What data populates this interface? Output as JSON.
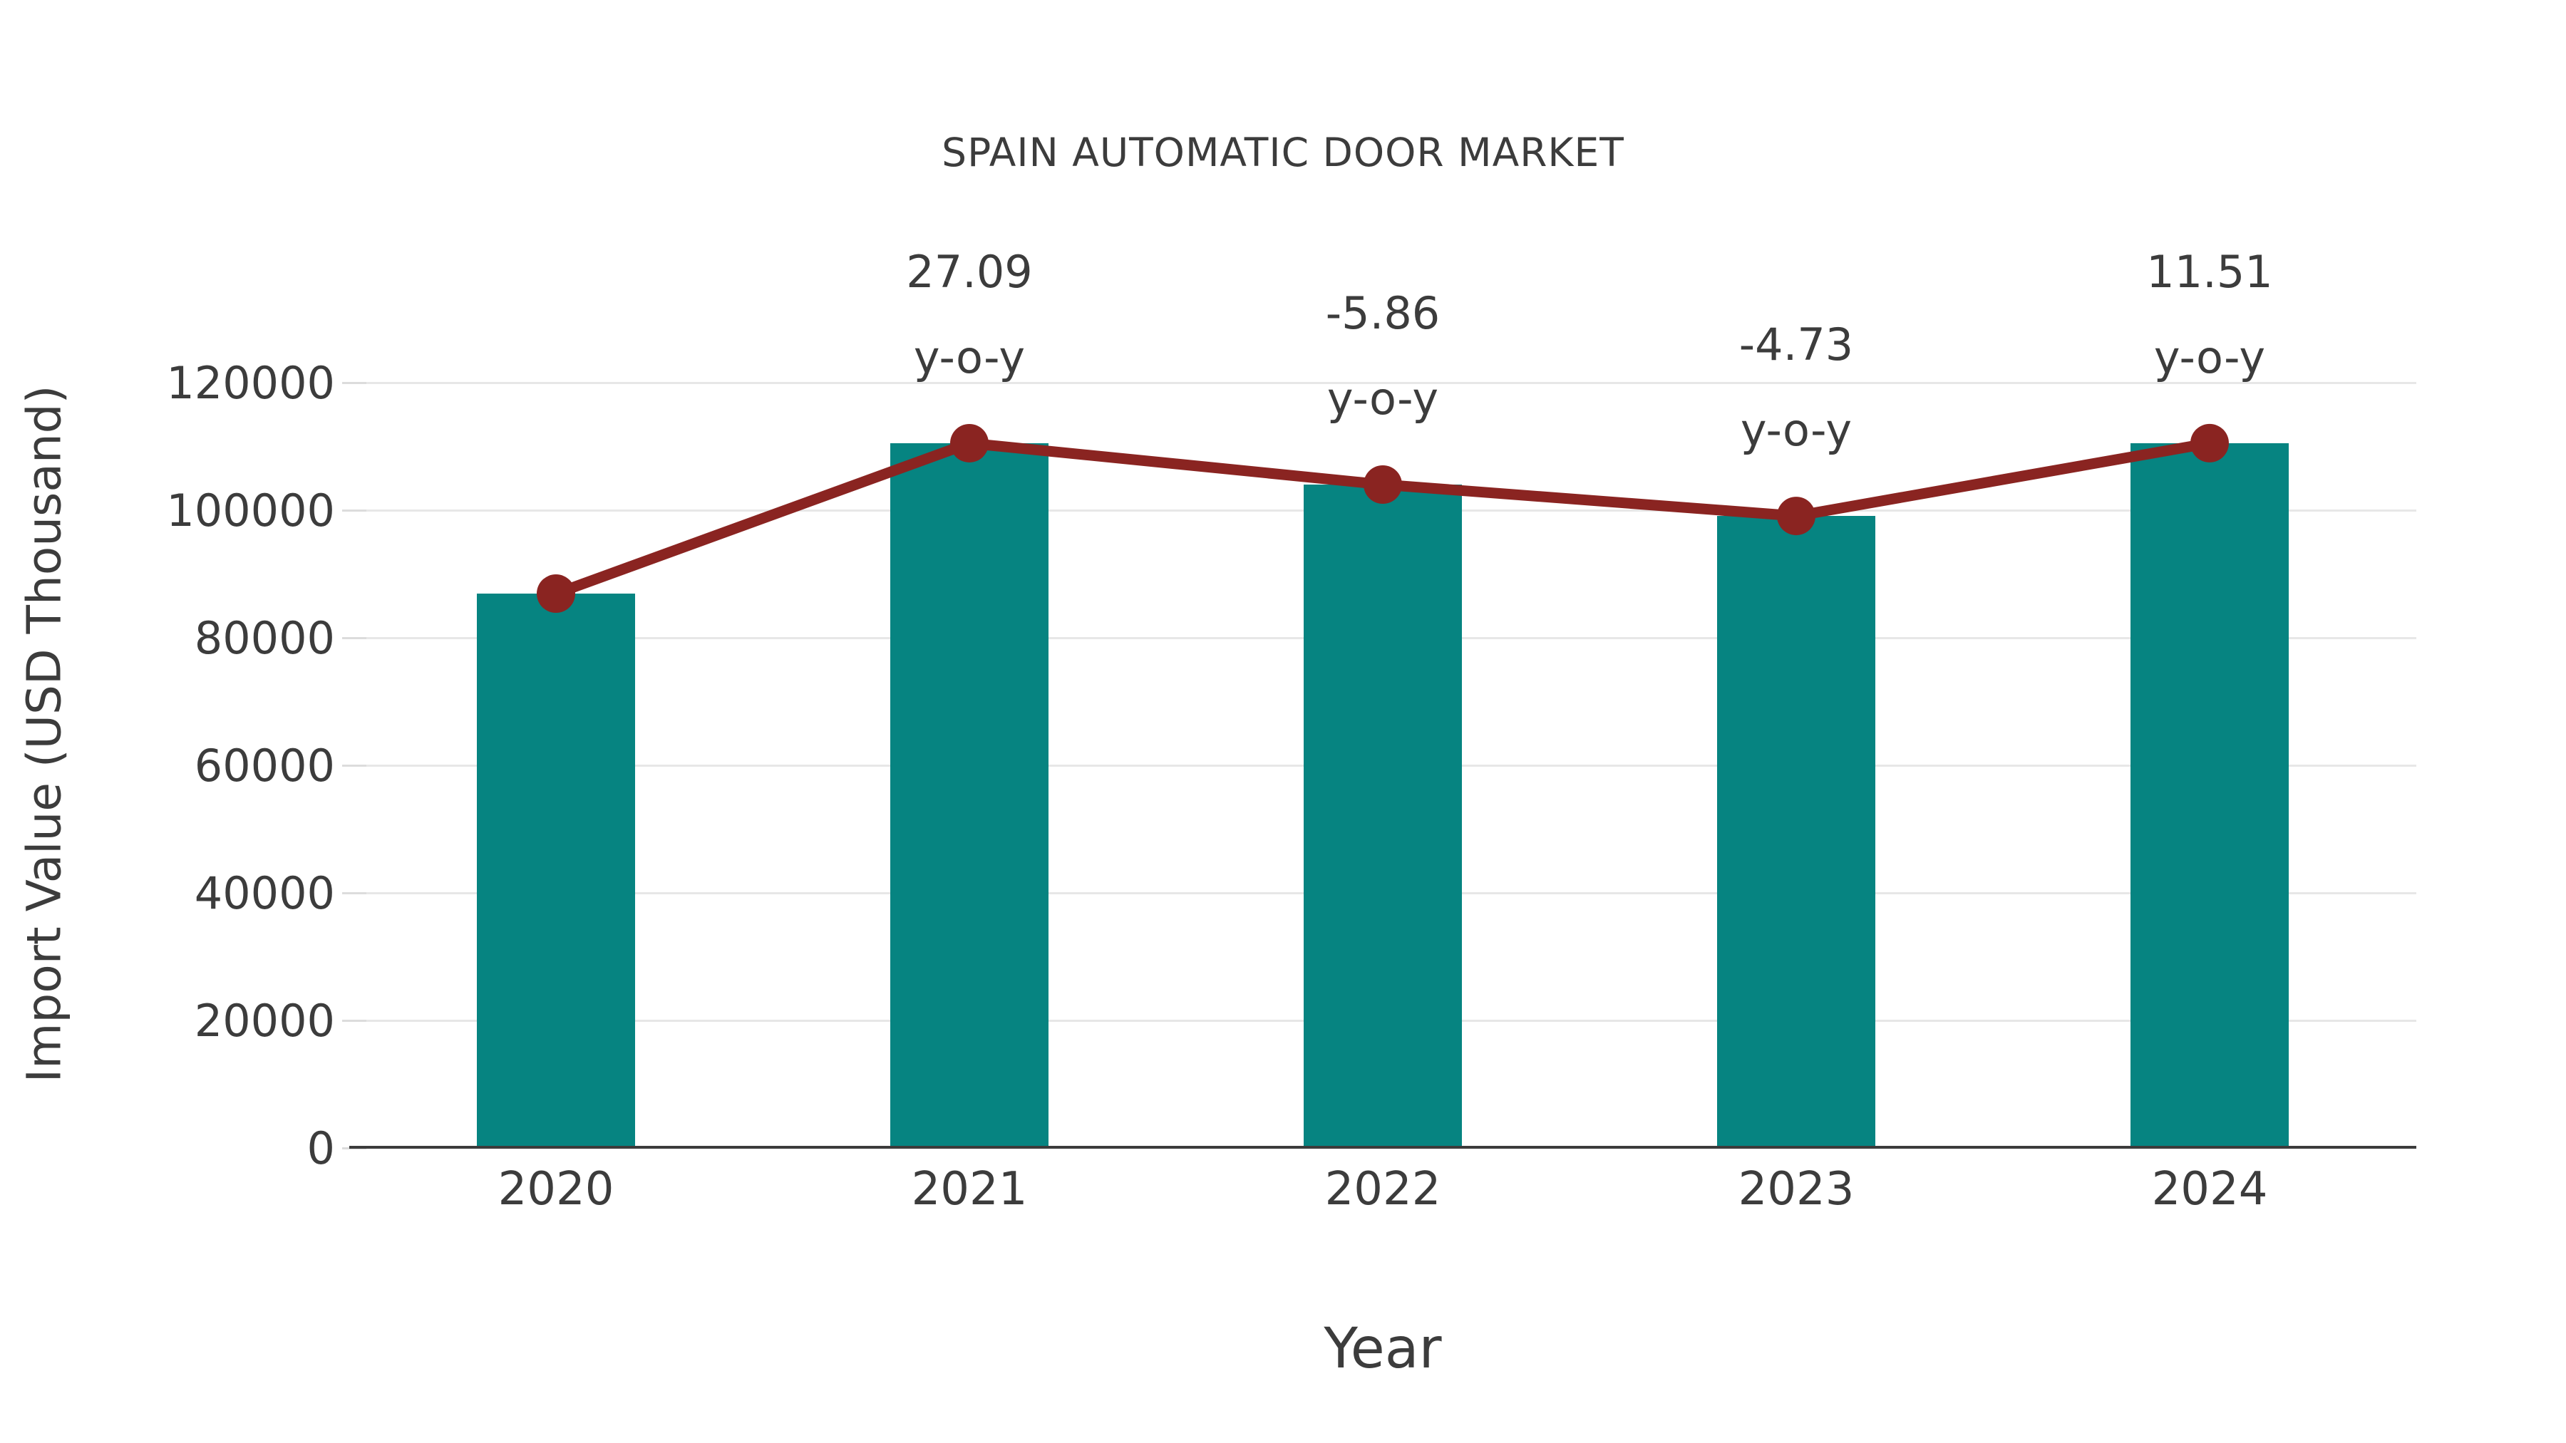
{
  "page": {
    "background": "#ffffff"
  },
  "chart_data": {
    "type": "bar",
    "title": "SPAIN AUTOMATIC DOOR MARKET",
    "xlabel": "Year",
    "ylabel": "Import Value (USD Thousand)",
    "categories": [
      "2020",
      "2021",
      "2022",
      "2023",
      "2024"
    ],
    "series": [
      {
        "name": "Import Value bars",
        "type": "bar",
        "color": "#068481",
        "values": [
          87000,
          110568,
          104089,
          99166,
          110580
        ]
      },
      {
        "name": "Import Value trend line",
        "type": "line",
        "color": "#8a2421",
        "values": [
          87000,
          110568,
          104089,
          99166,
          110580
        ]
      }
    ],
    "annotations": [
      {
        "category": "2021",
        "line1": "27.09",
        "line2": "y-o-y"
      },
      {
        "category": "2022",
        "line1": "-5.86",
        "line2": "y-o-y"
      },
      {
        "category": "2023",
        "line1": "-4.73",
        "line2": "y-o-y"
      },
      {
        "category": "2024",
        "line1": "11.51",
        "line2": "y-o-y"
      }
    ],
    "yticks": [
      0,
      20000,
      40000,
      60000,
      80000,
      100000,
      120000
    ],
    "ytick_labels": [
      "0",
      "20000",
      "40000",
      "60000",
      "80000",
      "100000",
      "120000"
    ],
    "ylim": [
      0,
      130000
    ],
    "grid": "horizontal",
    "legend": "none",
    "colors": {
      "bar": "#068481",
      "line": "#8a2421",
      "marker": "#8a2421",
      "text": "#3c3c3c",
      "gridline": "#e7e7e7",
      "tick": "#dcdcdc",
      "axis": "#3c3c3c"
    }
  }
}
